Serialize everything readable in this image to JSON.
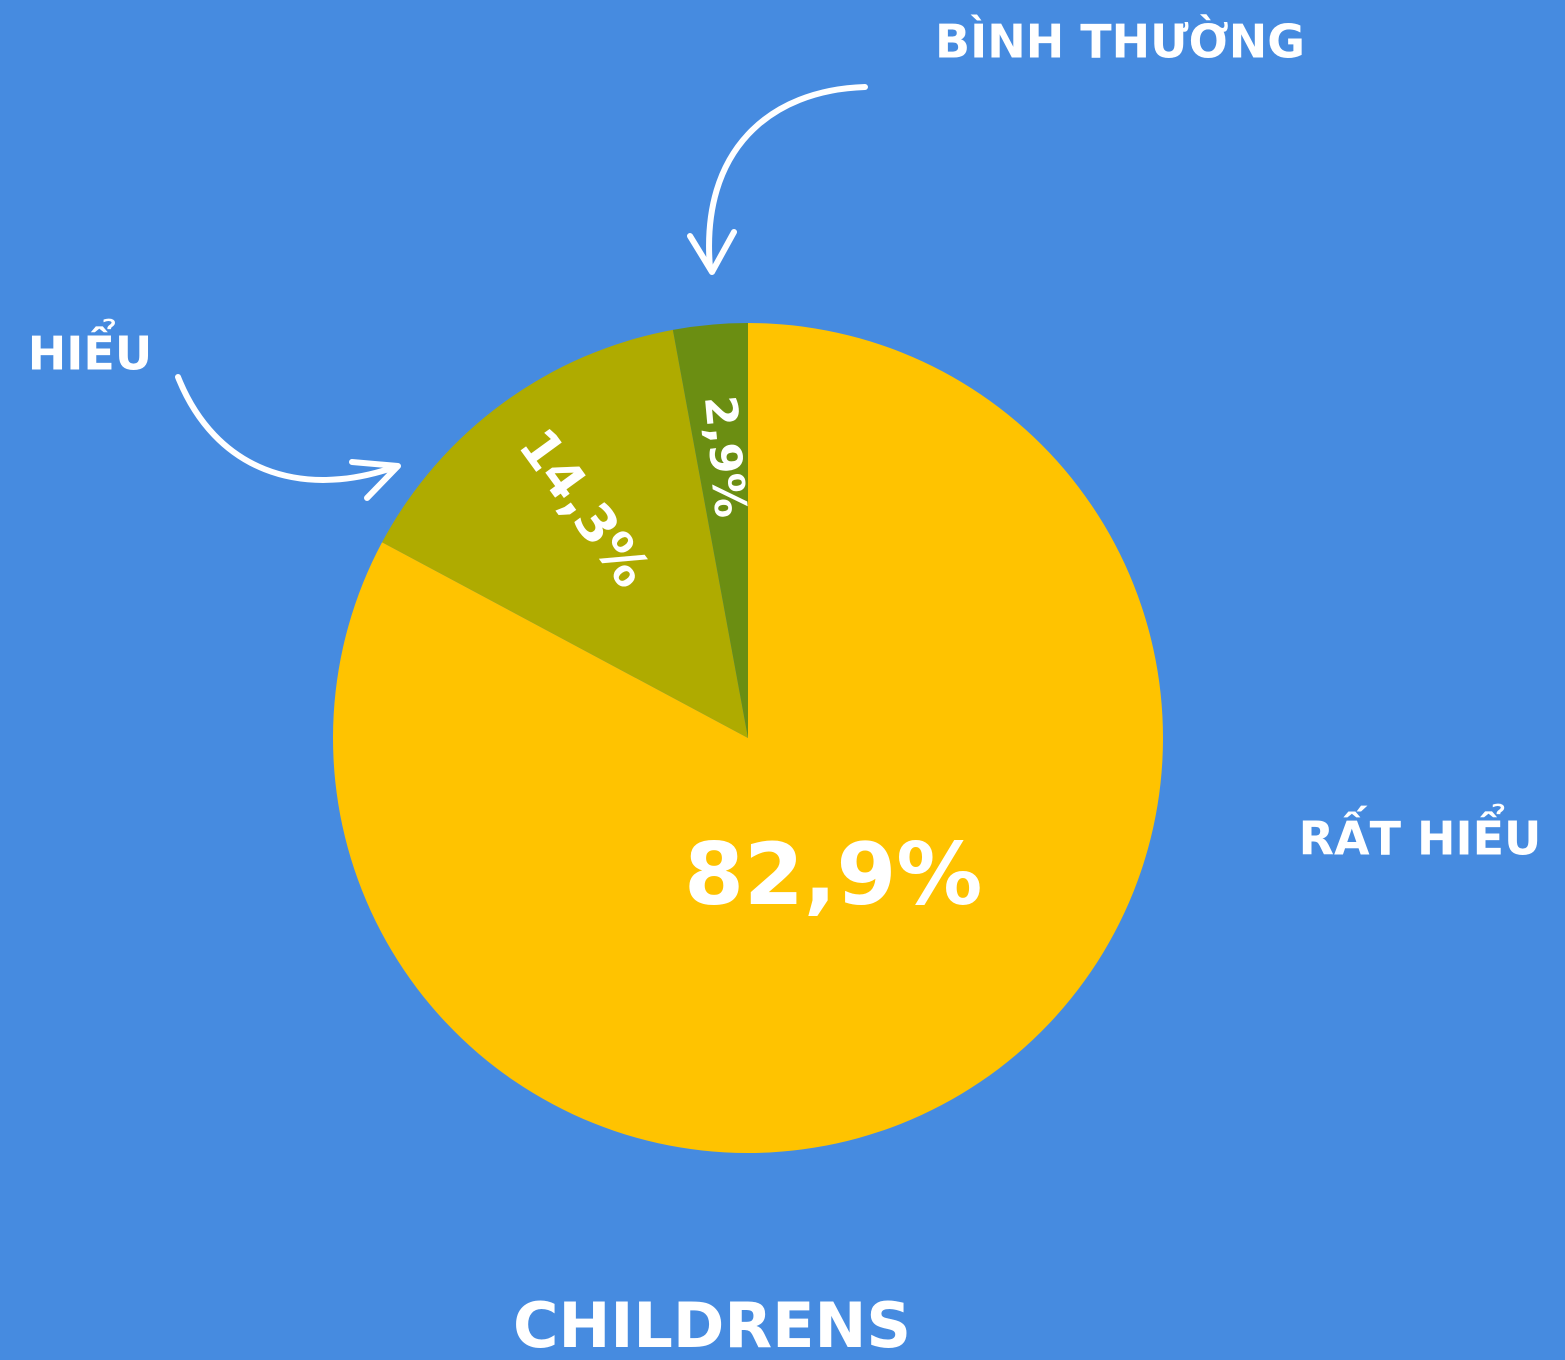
{
  "chart_data": {
    "type": "pie",
    "title": "CHILDRENS",
    "categories": [
      "RẤT HIỂU",
      "HIỂU",
      "BÌNH THƯỜNG"
    ],
    "values": [
      82.9,
      14.3,
      2.9
    ],
    "value_labels": [
      "82,9%",
      "14,3%",
      "2,9%"
    ],
    "colors": [
      "#ffc300",
      "#afab00",
      "#6b8e12"
    ]
  }
}
